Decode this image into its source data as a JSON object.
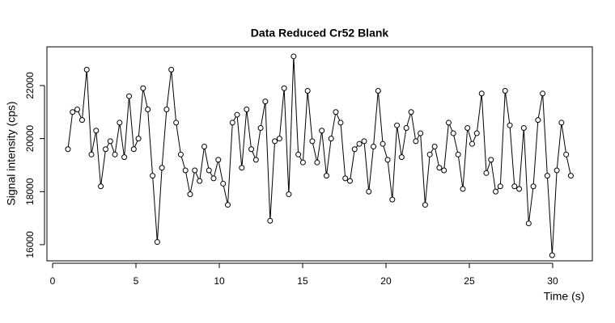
{
  "chart_data": {
    "type": "line",
    "title": "Data Reduced Cr52 Blank",
    "x_label": "Time (s)",
    "y_label": "Signal intensity (cps)",
    "x": [
      0.92,
      1.2,
      1.48,
      1.77,
      2.05,
      2.33,
      2.61,
      2.89,
      3.18,
      3.46,
      3.74,
      4.02,
      4.3,
      4.59,
      4.87,
      5.15,
      5.43,
      5.71,
      6.0,
      6.28,
      6.56,
      6.84,
      7.12,
      7.41,
      7.69,
      7.97,
      8.25,
      8.53,
      8.82,
      9.1,
      9.38,
      9.66,
      9.94,
      10.23,
      10.51,
      10.79,
      11.07,
      11.35,
      11.64,
      11.92,
      12.2,
      12.48,
      12.76,
      13.05,
      13.33,
      13.61,
      13.89,
      14.17,
      14.46,
      14.74,
      15.02,
      15.3,
      15.58,
      15.87,
      16.15,
      16.43,
      16.71,
      16.99,
      17.28,
      17.56,
      17.84,
      18.12,
      18.4,
      18.69,
      18.97,
      19.25,
      19.53,
      19.81,
      20.1,
      20.38,
      20.66,
      20.94,
      21.22,
      21.51,
      21.79,
      22.07,
      22.35,
      22.63,
      22.92,
      23.2,
      23.48,
      23.76,
      24.04,
      24.33,
      24.61,
      24.89,
      25.17,
      25.45,
      25.74,
      26.02,
      26.3,
      26.58,
      26.86,
      27.15,
      27.43,
      27.71,
      27.99,
      28.27,
      28.56,
      28.84,
      29.12,
      29.4,
      29.68,
      29.97,
      30.25,
      30.53,
      30.81,
      31.09
    ],
    "series": [
      {
        "color": "#000000",
        "values": [
          19600,
          21000,
          21100,
          20700,
          22600,
          19400,
          20300,
          18200,
          19600,
          19900,
          19400,
          20600,
          19300,
          21600,
          19600,
          20000,
          21900,
          21100,
          18600,
          16100,
          18900,
          21100,
          22600,
          20600,
          19400,
          18800,
          17900,
          18800,
          18400,
          19700,
          18800,
          18500,
          19200,
          18300,
          17500,
          20600,
          20900,
          18900,
          21100,
          19600,
          19200,
          20400,
          21400,
          16900,
          19900,
          20000,
          21900,
          17900,
          23100,
          19400,
          19100,
          21800,
          19900,
          19100,
          20300,
          18600,
          20000,
          21000,
          20600,
          18500,
          18400,
          19600,
          19800,
          19900,
          18000,
          19700,
          21800,
          19800,
          19200,
          17700,
          20500,
          19300,
          20400,
          21000,
          19900,
          20200,
          17500,
          19400,
          19700,
          18900,
          18800,
          20600,
          20200,
          19400,
          18100,
          20400,
          19800,
          20200,
          21700,
          18700,
          19200,
          18000,
          18200,
          21800,
          20500,
          18200,
          18100,
          20400,
          16800,
          18200,
          20700,
          21700,
          18600,
          15600,
          18800,
          20600,
          19400,
          18600
        ]
      }
    ],
    "xlim": [
      -0.34,
      32.38
    ],
    "ylim": [
      15390,
      23460
    ],
    "xticks": [
      0,
      5,
      10,
      15,
      20,
      25,
      30
    ],
    "yticks": [
      16000,
      18000,
      20000,
      22000
    ]
  }
}
